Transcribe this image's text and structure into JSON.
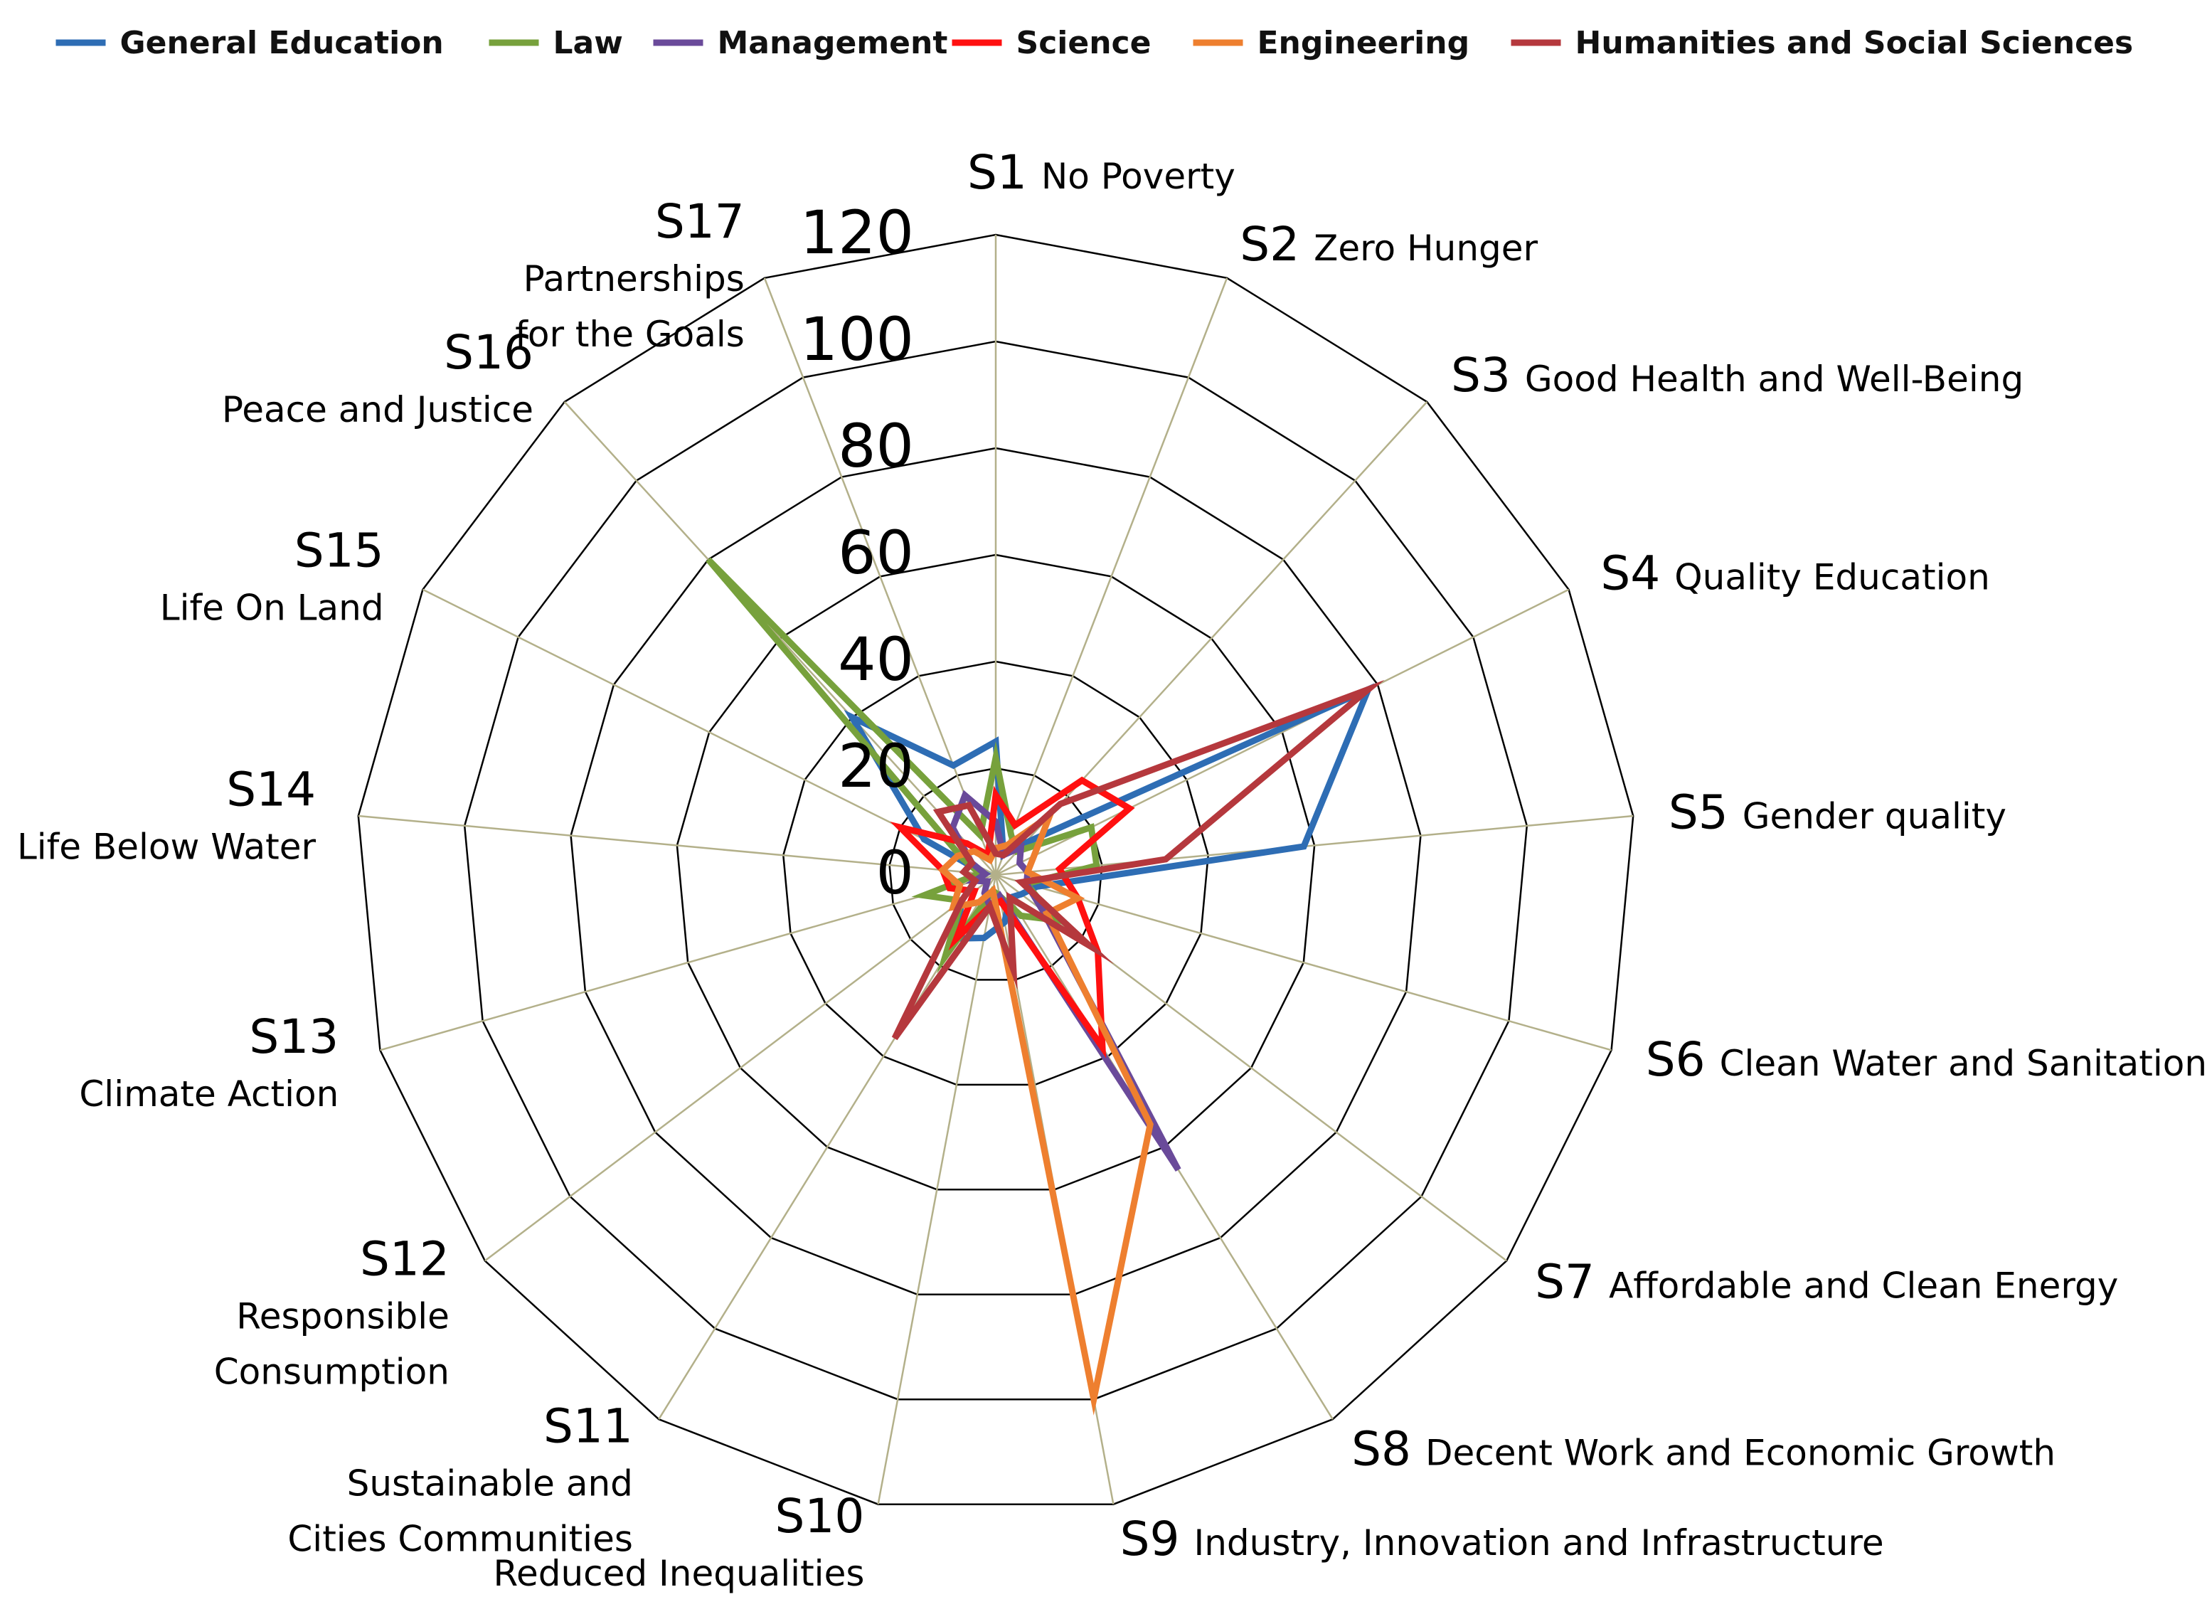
{
  "chart_data": {
    "type": "radar",
    "r_range": [
      0,
      120
    ],
    "r_ticks": [
      "0",
      "20",
      "40",
      "60",
      "80",
      "100",
      "120"
    ],
    "grid": true,
    "legend_position": "top",
    "axes": [
      {
        "code": "S1",
        "name": "No Poverty"
      },
      {
        "code": "S2",
        "name": "Zero Hunger"
      },
      {
        "code": "S3",
        "name": "Good Health and Well-Being"
      },
      {
        "code": "S4",
        "name": "Quality Education"
      },
      {
        "code": "S5",
        "name": "Gender quality"
      },
      {
        "code": "S6",
        "name": "Clean Water and Sanitation"
      },
      {
        "code": "S7",
        "name": "Affordable and Clean Energy"
      },
      {
        "code": "S8",
        "name": "Decent Work and Economic Growth"
      },
      {
        "code": "S9",
        "name": "Industry, Innovation and Infrastructure"
      },
      {
        "code": "S10",
        "name": "Reduced Inequalities"
      },
      {
        "code": "S11",
        "name": "Sustainable Cities and Communities"
      },
      {
        "code": "S12",
        "name": "Responsible Consumption"
      },
      {
        "code": "S13",
        "name": "Climate Action"
      },
      {
        "code": "S14",
        "name": "Life Below Water"
      },
      {
        "code": "S15",
        "name": "Life On Land"
      },
      {
        "code": "S16",
        "name": "Peace and Justice"
      },
      {
        "code": "S17",
        "name": "Partnerships for the Goals"
      }
    ],
    "series": [
      {
        "name": "General Education",
        "color": "#2E6DB4",
        "values": [
          25,
          4,
          8,
          78,
          58,
          8,
          6,
          5,
          9,
          12,
          14,
          8,
          4,
          2,
          15,
          40,
          22
        ]
      },
      {
        "name": "Law",
        "color": "#77A13C",
        "values": [
          22,
          8,
          6,
          20,
          19,
          6,
          14,
          9,
          4,
          3,
          18,
          8,
          14,
          3,
          7,
          80,
          8
        ]
      },
      {
        "name": "Management",
        "color": "#6A4A9A",
        "values": [
          10,
          4,
          7,
          5,
          6,
          6,
          11,
          65,
          4,
          6,
          4,
          2,
          4,
          2,
          5,
          12,
          16
        ]
      },
      {
        "name": "Science",
        "color": "#FF1010",
        "values": [
          15,
          10,
          24,
          28,
          12,
          16,
          24,
          38,
          5,
          6,
          14,
          5,
          9,
          10,
          20,
          8,
          4
        ]
      },
      {
        "name": "Engineering",
        "color": "#EE7F2F",
        "values": [
          5,
          6,
          15,
          8,
          6,
          16,
          12,
          55,
          100,
          3,
          6,
          10,
          7,
          10,
          8,
          6,
          3
        ]
      },
      {
        "name": "Humanities and Social Sciences",
        "color": "#B5383D",
        "values": [
          4,
          4,
          18,
          78,
          32,
          5,
          22,
          5,
          18,
          6,
          36,
          8,
          4,
          6,
          5,
          16,
          14
        ]
      }
    ]
  }
}
